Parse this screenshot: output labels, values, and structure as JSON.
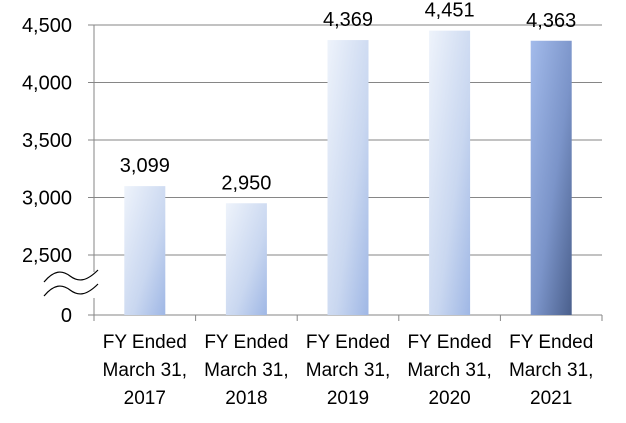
{
  "chart_data": {
    "type": "bar",
    "categories": [
      [
        "FY Ended",
        "March 31,",
        "2017"
      ],
      [
        "FY Ended",
        "March 31,",
        "2018"
      ],
      [
        "FY Ended",
        "March 31,",
        "2019"
      ],
      [
        "FY Ended",
        "March 31,",
        "2020"
      ],
      [
        "FY Ended",
        "March 31,",
        "2021"
      ]
    ],
    "values": [
      3099,
      2950,
      4369,
      4451,
      4363
    ],
    "value_labels": [
      "3,099",
      "2,950",
      "4,369",
      "4,451",
      "4,363"
    ],
    "yticks": [
      {
        "value": 2500,
        "label": "2,500"
      },
      {
        "value": 3000,
        "label": "3,000"
      },
      {
        "value": 3500,
        "label": "3,500"
      },
      {
        "value": 4000,
        "label": "4,000"
      },
      {
        "value": 4500,
        "label": "4,500"
      }
    ],
    "y_zero_label": "0",
    "axis_break": true,
    "ylim": [
      2000,
      4500
    ],
    "grid": true,
    "title": "",
    "xlabel": "",
    "ylabel": "",
    "colors": {
      "bar_light_top": "#eaf0fa",
      "bar_light_bottom": "#b9c9ea",
      "bar_light_right": "#8eaadf",
      "bar_dark_top": "#9cb4e6",
      "bar_dark_bottom": "#4d6390",
      "grid": "#868686",
      "axis": "#868686"
    },
    "highlight_index": 4
  }
}
